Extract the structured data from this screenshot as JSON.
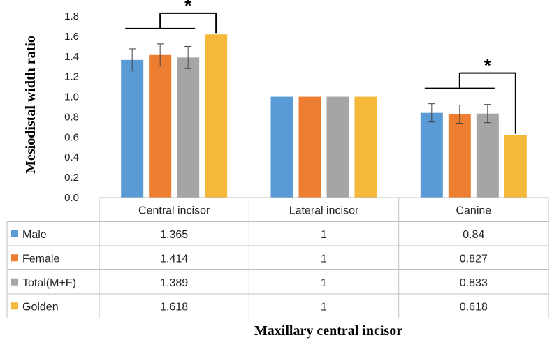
{
  "chart_data": {
    "type": "bar",
    "categories": [
      "Central incisor",
      "Lateral incisor",
      "Canine"
    ],
    "series": [
      {
        "name": "Male",
        "color": "#5B9BD5",
        "values": [
          1.365,
          1,
          0.84
        ],
        "error": [
          0.11,
          0,
          0.09
        ]
      },
      {
        "name": "Female",
        "color": "#ED7D31",
        "values": [
          1.414,
          1,
          0.827
        ],
        "error": [
          0.11,
          0,
          0.09
        ]
      },
      {
        "name": "Total(M+F)",
        "color": "#A5A5A5",
        "values": [
          1.389,
          1,
          0.833
        ],
        "error": [
          0.11,
          0,
          0.09
        ]
      },
      {
        "name": "Golden",
        "color": "#F4B93A",
        "values": [
          1.618,
          1,
          0.618
        ],
        "error": [
          0,
          0,
          0
        ]
      }
    ],
    "table_values": [
      [
        "1.365",
        "1",
        "0.84"
      ],
      [
        "1.414",
        "1",
        "0.827"
      ],
      [
        "1.389",
        "1",
        "0.833"
      ],
      [
        "1.618",
        "1",
        "0.618"
      ]
    ],
    "title": "",
    "ylabel": "Mesiodistal width ratio",
    "xlabel": "Maxillary central incisor",
    "ylim": [
      0,
      1.8
    ],
    "yticks": [
      "0.0",
      "0.2",
      "0.4",
      "0.6",
      "0.8",
      "1.0",
      "1.2",
      "1.4",
      "1.6",
      "1.8"
    ],
    "significance": [
      {
        "category": "Central incisor",
        "marker": "*"
      },
      {
        "category": "Canine",
        "marker": "*"
      }
    ],
    "grid": false,
    "legend": "data-table"
  }
}
